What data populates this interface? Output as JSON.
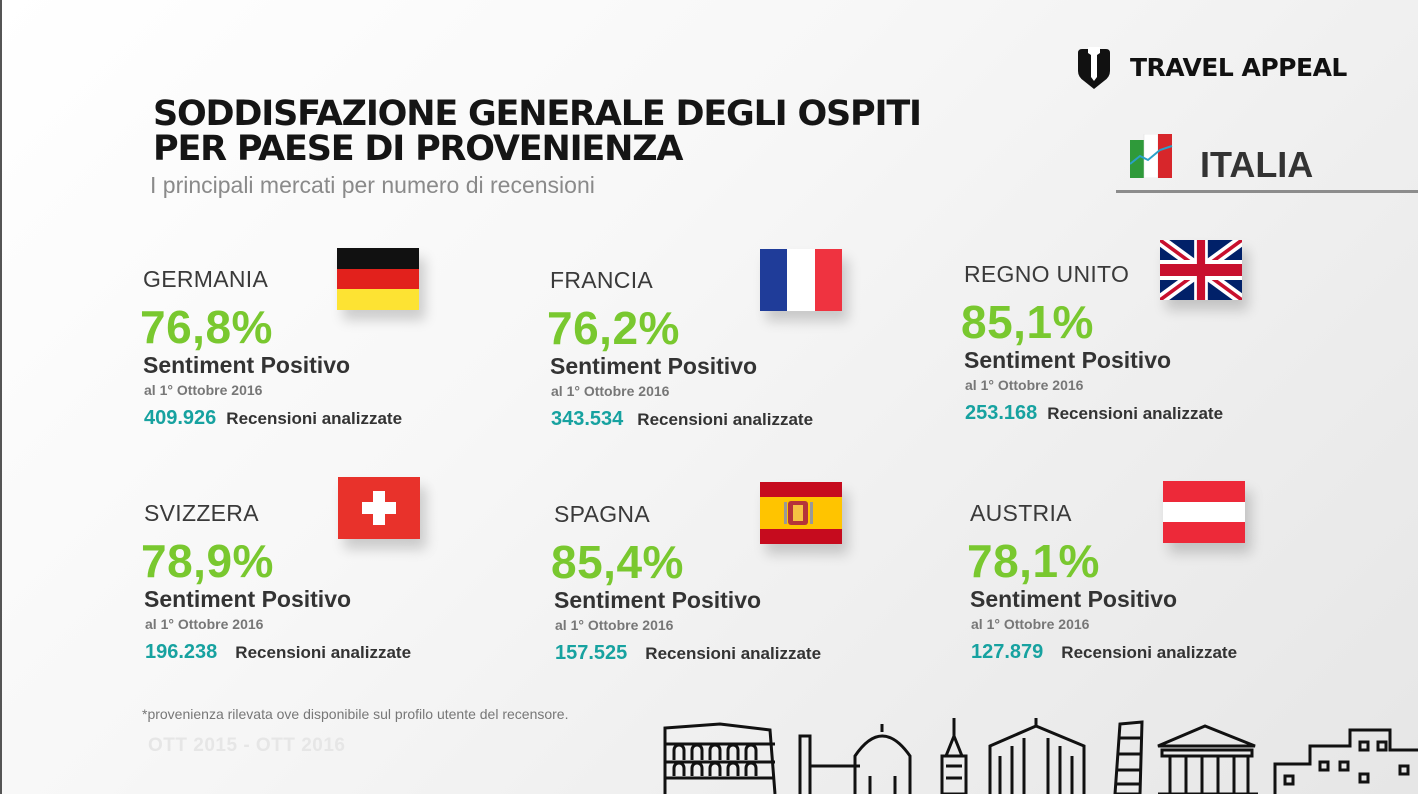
{
  "brand": {
    "name": "TRAVEL APPEAL"
  },
  "header": {
    "title_line1": "SODDISFAZIONE GENERALE DEGLI OSPITI",
    "title_line2": "PER PAESE DI PROVENIENZA",
    "subtitle": "I principali mercati per numero di recensioni"
  },
  "market": {
    "label": "ITALIA"
  },
  "countries": [
    {
      "name": "GERMANIA",
      "percent": "76,8%",
      "sentiment_label": "Sentiment Positivo",
      "date": "al 1° Ottobre 2016",
      "reviews": "409.926",
      "reviews_label": "Recensioni analizzate"
    },
    {
      "name": "FRANCIA",
      "percent": "76,2%",
      "sentiment_label": "Sentiment Positivo",
      "date": "al 1° Ottobre 2016",
      "reviews": "343.534",
      "reviews_label": "Recensioni analizzate"
    },
    {
      "name": "REGNO UNITO",
      "percent": "85,1%",
      "sentiment_label": "Sentiment Positivo",
      "date": "al 1° Ottobre 2016",
      "reviews": "253.168",
      "reviews_label": "Recensioni analizzate"
    },
    {
      "name": "SVIZZERA",
      "percent": "78,9%",
      "sentiment_label": "Sentiment Positivo",
      "date": "al 1° Ottobre 2016",
      "reviews": "196.238",
      "reviews_label": "Recensioni analizzate"
    },
    {
      "name": "SPAGNA",
      "percent": "85,4%",
      "sentiment_label": "Sentiment Positivo",
      "date": "al 1° Ottobre 2016",
      "reviews": "157.525",
      "reviews_label": "Recensioni analizzate"
    },
    {
      "name": "AUSTRIA",
      "percent": "78,1%",
      "sentiment_label": "Sentiment Positivo",
      "date": "al 1° Ottobre 2016",
      "reviews": "127.879",
      "reviews_label": "Recensioni analizzate"
    }
  ],
  "footer": {
    "note": "*provenienza rilevata ove disponibile sul profilo utente del recensore.",
    "period": "OTT 2015 - OTT 2016"
  },
  "colors": {
    "percent": "#79c82f",
    "reviews": "#17a2a0",
    "title": "#151515"
  },
  "icons": [
    "travel-appeal-logo-icon",
    "flag-italy-icon",
    "flag-germany-icon",
    "flag-france-icon",
    "flag-uk-icon",
    "flag-switzerland-icon",
    "flag-spain-icon",
    "flag-austria-icon",
    "italian-landmarks-skyline"
  ]
}
